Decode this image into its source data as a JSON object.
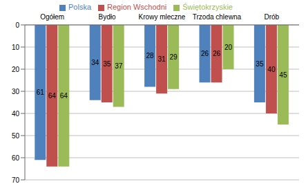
{
  "chart_data": {
    "type": "bar",
    "categories": [
      "Ogółem",
      "Bydło",
      "Krowy mleczne",
      "Trzoda chlewna",
      "Drób"
    ],
    "series": [
      {
        "name": "Polska",
        "color": "#4f81bd",
        "values": [
          61,
          34,
          28,
          26,
          35
        ]
      },
      {
        "name": "Region Wschodni",
        "color": "#c0504d",
        "values": [
          64,
          35,
          31,
          26,
          40
        ]
      },
      {
        "name": "Świętokrzyskie",
        "color": "#9bbb59",
        "values": [
          64,
          37,
          29,
          20,
          45
        ]
      }
    ],
    "ylim": [
      0,
      70
    ],
    "yticks": [
      0,
      10,
      20,
      30,
      40,
      50,
      60,
      70
    ],
    "grid": true,
    "data_labels": true,
    "legend": "top"
  }
}
